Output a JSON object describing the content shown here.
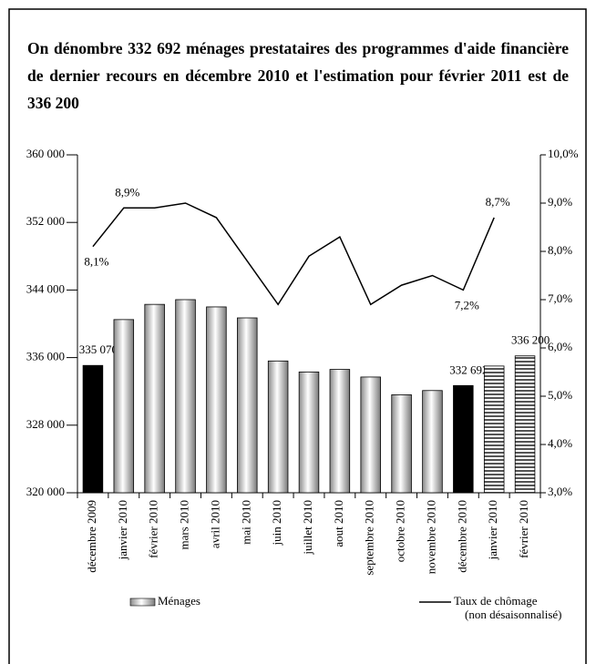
{
  "chart_data": {
    "type": "bar-line",
    "title": "On dénombre 332 692 ménages prestataires des programmes d'aide financière de dernier recours en décembre 2010 et l'estimation pour février 2011 est de 336 200",
    "categories": [
      "décembre 2009",
      "janvier 2010",
      "février 2010",
      "mars 2010",
      "avril 2010",
      "mai 2010",
      "juin 2010",
      "juillet 2010",
      "aout 2010",
      "septembre 2010",
      "octobre 2010",
      "novembre 2010",
      "décembre 2010",
      "janvier 2010",
      "février 2010"
    ],
    "series": [
      {
        "name": "Ménages",
        "type": "bar",
        "color": "#b8b8b8",
        "colors": [
          "#000000",
          "#b8b8b8",
          "#b8b8b8",
          "#b8b8b8",
          "#b8b8b8",
          "#b8b8b8",
          "#b8b8b8",
          "#b8b8b8",
          "#b8b8b8",
          "#b8b8b8",
          "#b8b8b8",
          "#b8b8b8",
          "#000000",
          "#b8b8b8",
          "#b8b8b8"
        ],
        "patterns": [
          null,
          "gradient",
          "gradient",
          "gradient",
          "gradient",
          "gradient",
          "gradient",
          "gradient",
          "gradient",
          "gradient",
          "gradient",
          "gradient",
          null,
          "stripes",
          "stripes"
        ],
        "values": [
          335070,
          340500,
          342300,
          342860,
          342000,
          340700,
          335600,
          334300,
          334600,
          333700,
          331600,
          332100,
          332692,
          335000,
          336200
        ],
        "value_labels": [
          "335 070",
          null,
          null,
          null,
          null,
          null,
          null,
          null,
          null,
          null,
          null,
          null,
          "332 692",
          null,
          "336 200"
        ]
      },
      {
        "name": "Taux de chômage",
        "note": "(non désaisonnalisé)",
        "type": "line",
        "axis": "y2",
        "color": "#000000",
        "values": [
          8.1,
          8.9,
          8.9,
          9.0,
          8.7,
          7.8,
          6.9,
          7.9,
          8.3,
          6.9,
          7.3,
          7.5,
          7.2,
          8.7,
          null
        ],
        "value_labels": [
          "8,1%",
          "8,9%",
          null,
          null,
          null,
          null,
          null,
          null,
          null,
          null,
          null,
          null,
          "7,2%",
          "8,7%",
          null
        ]
      }
    ],
    "ylim": [
      320000,
      360000
    ],
    "yticks": [
      {
        "value": 320000,
        "label": "320 000"
      },
      {
        "value": 328000,
        "label": "328 000"
      },
      {
        "value": 336000,
        "label": "336 000"
      },
      {
        "value": 344000,
        "label": "344 000"
      },
      {
        "value": 352000,
        "label": "352 000"
      },
      {
        "value": 360000,
        "label": "360 000"
      }
    ],
    "y2lim": [
      3,
      10
    ],
    "y2ticks": [
      {
        "value": 3,
        "label": "3,0%"
      },
      {
        "value": 4,
        "label": "4,0%"
      },
      {
        "value": 5,
        "label": "5,0%"
      },
      {
        "value": 6,
        "label": "6,0%"
      },
      {
        "value": 7,
        "label": "7,0%"
      },
      {
        "value": 8,
        "label": "8,0%"
      },
      {
        "value": 9,
        "label": "9,0%"
      },
      {
        "value": 10,
        "label": "10,0%"
      }
    ],
    "grid": false,
    "legend": "bottom"
  }
}
